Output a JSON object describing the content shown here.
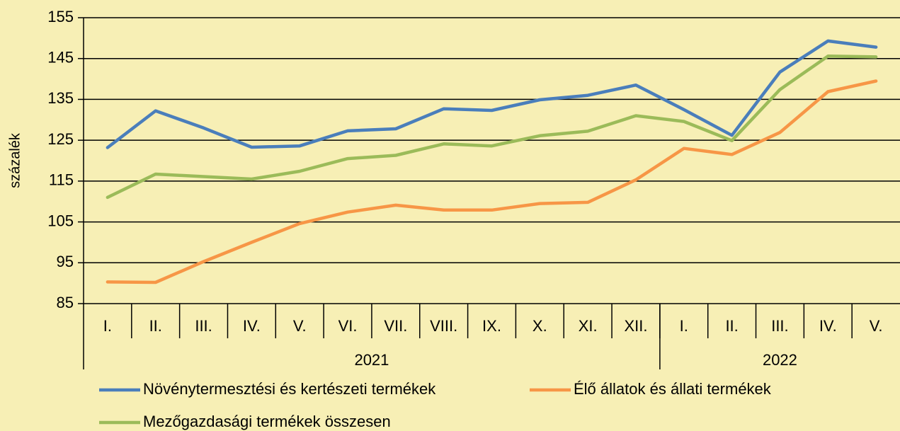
{
  "chart_data": {
    "type": "line",
    "y_label": "százalék",
    "categories": [
      "I.",
      "II.",
      "III.",
      "IV.",
      "V.",
      "VI.",
      "VII.",
      "VIII.",
      "IX.",
      "X.",
      "XI.",
      "XII.",
      "I.",
      "II.",
      "III.",
      "IV.",
      "V."
    ],
    "groups": [
      {
        "label": "2021",
        "span": 12
      },
      {
        "label": "2022",
        "span": 5
      }
    ],
    "series": [
      {
        "name": "Növénytermesztési és kertészeti termékek",
        "color": "#4a7ebb",
        "values": [
          123.2,
          132.2,
          128.0,
          123.3,
          123.6,
          127.3,
          127.8,
          132.7,
          132.3,
          134.9,
          136.0,
          138.5,
          132.5,
          126.2,
          141.7,
          149.3,
          147.8
        ]
      },
      {
        "name": "Élő állatok és állati termékek",
        "color": "#f79646",
        "values": [
          90.3,
          90.2,
          95.3,
          100.0,
          104.6,
          107.4,
          109.1,
          107.9,
          107.9,
          109.5,
          109.8,
          115.3,
          123.0,
          121.5,
          126.9,
          136.9,
          139.5
        ]
      },
      {
        "name": "Mezőgazdasági termékek összesen",
        "color": "#9bbb59",
        "values": [
          111.0,
          116.7,
          116.1,
          115.5,
          117.4,
          120.5,
          121.3,
          124.1,
          123.6,
          126.1,
          127.2,
          131.0,
          129.6,
          124.9,
          137.4,
          145.6,
          145.4
        ]
      }
    ],
    "ylim": [
      85,
      155
    ],
    "yticks": [
      85,
      95,
      105,
      115,
      125,
      135,
      145,
      155
    ],
    "grid": true
  }
}
